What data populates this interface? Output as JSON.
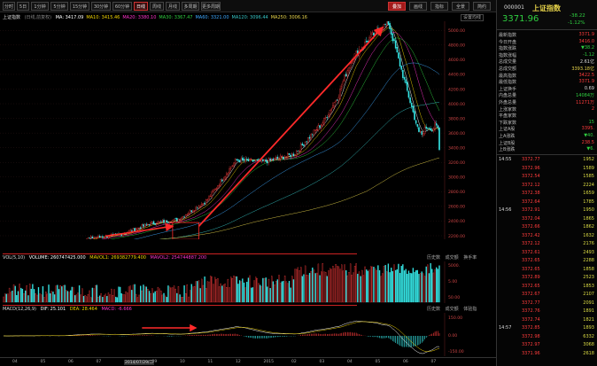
{
  "toolbar": {
    "tabs": [
      "分时",
      "5日",
      "1分钟",
      "5分钟",
      "15分钟",
      "30分钟",
      "60分钟",
      "日线",
      "周线",
      "月线",
      "多周期",
      "更多周期"
    ],
    "active_tab": "日线",
    "right_buttons": [
      "叠加",
      "画线",
      "指标",
      "全景",
      "简约"
    ]
  },
  "main_chart": {
    "index_name": "上证指数",
    "period": "(日线,前复权)",
    "ma_items": [
      {
        "label": "MA: 3417.09",
        "color": "#ffffff"
      },
      {
        "label": "MA10: 3415.46",
        "color": "#f1d400"
      },
      {
        "label": "MA20: 3380.10",
        "color": "#ff33cc"
      },
      {
        "label": "MA30: 3367.47",
        "color": "#2fcf40"
      },
      {
        "label": "MA60: 3321.00",
        "color": "#3da8ff"
      },
      {
        "label": "MA120: 3096.44",
        "color": "#36c6c6"
      },
      {
        "label": "MA250: 3006.16",
        "color": "#e8d44a"
      }
    ],
    "peak_label": "5178.19",
    "settings_label": "设置均线",
    "y_ticks": [
      "5000.00",
      "4800.00",
      "4600.00",
      "4400.00",
      "4200.00",
      "4000.00",
      "3800.00",
      "3600.00",
      "3400.00",
      "3200.00",
      "3000.00",
      "2800.00",
      "2600.00",
      "2400.00",
      "2200.00"
    ],
    "x_ticks": [
      "04",
      "05",
      "06",
      "07",
      "2014/07/29/二",
      "09",
      "10",
      "11",
      "12",
      "2015",
      "02",
      "03",
      "04",
      "05",
      "06",
      "07"
    ]
  },
  "volume_panel": {
    "title": "VOL(5,10)",
    "items": [
      "VOLUME: 260747425.000",
      "MAVOL1: 269382779.400",
      "MAVOL2: 254744887.200"
    ],
    "tabs": [
      "历史数",
      "成交额",
      "换手率"
    ],
    "y_ticks": [
      "5000.",
      "5.00",
      "50.00"
    ]
  },
  "macd_panel": {
    "title": "MACD(12,26,9)",
    "items": [
      "DIF: 25.101",
      "DEA: 28.464",
      "MACD: -6.666"
    ],
    "tabs": [
      "历史数",
      "成交额",
      "体验指"
    ],
    "y_ticks": [
      "150.00",
      "0.00",
      "-150.00"
    ]
  },
  "chart_data": {
    "type": "candlestick",
    "title": "上证指数 (日线,前复权)",
    "x_dates": [
      "2014-04",
      "2014-05",
      "2014-06",
      "2014-07",
      "2014-08",
      "2014-09",
      "2014-10",
      "2014-11",
      "2014-12",
      "2015-01",
      "2015-02",
      "2015-03",
      "2015-04",
      "2015-05",
      "2015-06",
      "2015-07"
    ],
    "close": [
      2030,
      2040,
      2050,
      2170,
      2210,
      2360,
      2420,
      2680,
      3230,
      3210,
      3310,
      3750,
      4440,
      4610,
      4280,
      3710
    ],
    "peak": 5178.19,
    "last": 3371.96,
    "ylim": [
      2200,
      5100
    ],
    "annotations": [
      "trend arrow from 2014-07 consolidation box to 5178.19 peak"
    ]
  },
  "right_panel": {
    "code": "000001",
    "name": "上证指数",
    "price": "3371.96",
    "change": "-38.22",
    "change_pct": "-1.12%",
    "stats": [
      {
        "label": "最新指数",
        "value": "3371.9",
        "cls": "up"
      },
      {
        "label": "今日开盘",
        "value": "3416.0",
        "cls": "up"
      },
      {
        "label": "指数涨跌",
        "value": "▼38.2",
        "cls": "dn"
      },
      {
        "label": "指数涨幅",
        "value": "-1.12",
        "cls": "dn"
      },
      {
        "label": "总成交量",
        "value": "2.61亿",
        "cls": "wh"
      },
      {
        "label": "总成交额",
        "value": "3393.18亿",
        "cls": "yl"
      },
      {
        "label": "最高指数",
        "value": "3422.5",
        "cls": "up"
      },
      {
        "label": "最低指数",
        "value": "3371.9",
        "cls": "up"
      },
      {
        "label": "上证换手",
        "value": "0.69",
        "cls": "wh"
      },
      {
        "label": "内盘总量",
        "value": "14084万",
        "cls": "dn"
      },
      {
        "label": "外盘总量",
        "value": "11271万",
        "cls": "up"
      },
      {
        "label": "上涨家数",
        "value": "2",
        "cls": "up"
      },
      {
        "label": "平盘家数",
        "value": "",
        "cls": "wh"
      },
      {
        "label": "下跌家数",
        "value": "15",
        "cls": "dn"
      },
      {
        "label": "上证A股",
        "value": "3395.",
        "cls": "up"
      },
      {
        "label": "上A涨跌",
        "value": "▼40.",
        "cls": "dn"
      },
      {
        "label": "上证B股",
        "value": "238.5",
        "cls": "up"
      },
      {
        "label": "上B涨跌",
        "value": "▼6.",
        "cls": "dn"
      }
    ],
    "ticks": [
      {
        "t": "14:55",
        "p": "3372.77",
        "v": "1952"
      },
      {
        "t": "",
        "p": "3372.96",
        "v": "1589"
      },
      {
        "t": "",
        "p": "3372.54",
        "v": "1585"
      },
      {
        "t": "",
        "p": "3372.12",
        "v": "2224"
      },
      {
        "t": "",
        "p": "3372.38",
        "v": "1659"
      },
      {
        "t": "",
        "p": "3372.64",
        "v": "1785"
      },
      {
        "t": "14:56",
        "p": "3372.91",
        "v": "1950"
      },
      {
        "t": "",
        "p": "3372.04",
        "v": "1865"
      },
      {
        "t": "",
        "p": "3372.66",
        "v": "1862"
      },
      {
        "t": "",
        "p": "3372.42",
        "v": "1632"
      },
      {
        "t": "",
        "p": "3372.12",
        "v": "2176"
      },
      {
        "t": "",
        "p": "3372.61",
        "v": "2493"
      },
      {
        "t": "",
        "p": "3372.65",
        "v": "2288"
      },
      {
        "t": "",
        "p": "3372.65",
        "v": "1858"
      },
      {
        "t": "",
        "p": "3372.89",
        "v": "2523"
      },
      {
        "t": "",
        "p": "3372.65",
        "v": "1853"
      },
      {
        "t": "",
        "p": "3372.67",
        "v": "2107"
      },
      {
        "t": "",
        "p": "3372.77",
        "v": "2091"
      },
      {
        "t": "",
        "p": "3372.76",
        "v": "1891"
      },
      {
        "t": "",
        "p": "3372.74",
        "v": "1821"
      },
      {
        "t": "14:57",
        "p": "3372.85",
        "v": "1893"
      },
      {
        "t": "",
        "p": "3372.98",
        "v": "6332"
      },
      {
        "t": "",
        "p": "3372.97",
        "v": "3068"
      },
      {
        "t": "",
        "p": "3371.96",
        "v": "2618"
      }
    ]
  }
}
